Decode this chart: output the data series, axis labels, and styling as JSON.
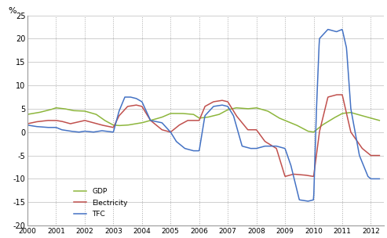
{
  "gdp_x": [
    2000.0,
    2000.4,
    2000.8,
    2001.0,
    2001.3,
    2001.6,
    2002.0,
    2002.4,
    2002.7,
    2003.0,
    2003.2,
    2003.5,
    2003.7,
    2004.0,
    2004.3,
    2004.7,
    2005.0,
    2005.4,
    2005.8,
    2006.0,
    2006.3,
    2006.7,
    2007.0,
    2007.3,
    2007.7,
    2008.0,
    2008.4,
    2008.8,
    2009.0,
    2009.4,
    2009.8,
    2010.0,
    2010.3,
    2010.7,
    2011.0,
    2011.3,
    2011.7,
    2012.0,
    2012.3
  ],
  "gdp_y": [
    3.8,
    4.2,
    4.8,
    5.2,
    5.0,
    4.6,
    4.5,
    3.8,
    2.5,
    1.5,
    1.4,
    1.5,
    1.7,
    2.0,
    2.5,
    3.2,
    4.0,
    4.0,
    3.8,
    3.0,
    3.2,
    3.8,
    4.8,
    5.2,
    5.0,
    5.2,
    4.5,
    3.0,
    2.5,
    1.5,
    0.2,
    0.0,
    1.5,
    3.0,
    4.0,
    4.2,
    3.5,
    3.0,
    2.5
  ],
  "elec_x": [
    2000.0,
    2000.3,
    2000.7,
    2001.0,
    2001.2,
    2001.5,
    2001.8,
    2002.0,
    2002.3,
    2002.6,
    2003.0,
    2003.2,
    2003.5,
    2003.8,
    2004.0,
    2004.3,
    2004.7,
    2005.0,
    2005.3,
    2005.6,
    2006.0,
    2006.2,
    2006.5,
    2006.8,
    2007.0,
    2007.3,
    2007.7,
    2008.0,
    2008.3,
    2008.7,
    2009.0,
    2009.3,
    2009.7,
    2010.0,
    2010.2,
    2010.5,
    2010.8,
    2011.0,
    2011.3,
    2011.7,
    2012.0,
    2012.3
  ],
  "elec_y": [
    1.8,
    2.2,
    2.5,
    2.5,
    2.3,
    1.8,
    2.2,
    2.5,
    2.0,
    1.5,
    1.0,
    3.5,
    5.5,
    5.8,
    5.5,
    2.5,
    0.5,
    0.0,
    1.5,
    2.5,
    2.5,
    5.5,
    6.5,
    6.8,
    6.5,
    3.5,
    0.5,
    0.5,
    -2.0,
    -3.5,
    -9.5,
    -9.0,
    -9.2,
    -9.5,
    0.0,
    7.5,
    8.0,
    8.0,
    0.0,
    -3.5,
    -5.0,
    -5.0
  ],
  "tfc_x": [
    2000.0,
    2000.3,
    2000.7,
    2001.0,
    2001.2,
    2001.5,
    2001.8,
    2002.0,
    2002.3,
    2002.6,
    2003.0,
    2003.2,
    2003.4,
    2003.6,
    2003.8,
    2004.0,
    2004.3,
    2004.7,
    2005.0,
    2005.2,
    2005.5,
    2005.8,
    2006.0,
    2006.2,
    2006.5,
    2006.8,
    2007.0,
    2007.2,
    2007.5,
    2007.8,
    2008.0,
    2008.3,
    2008.7,
    2009.0,
    2009.2,
    2009.5,
    2009.8,
    2010.0,
    2010.1,
    2010.2,
    2010.5,
    2010.8,
    2011.0,
    2011.15,
    2011.3,
    2011.6,
    2011.9,
    2012.0,
    2012.3
  ],
  "tfc_y": [
    1.5,
    1.2,
    1.0,
    1.0,
    0.5,
    0.2,
    0.0,
    0.2,
    0.0,
    0.3,
    0.0,
    4.5,
    7.5,
    7.5,
    7.2,
    6.5,
    2.5,
    2.0,
    0.0,
    -2.0,
    -3.5,
    -4.0,
    -4.0,
    3.5,
    5.5,
    5.8,
    5.5,
    3.5,
    -3.0,
    -3.5,
    -3.5,
    -3.0,
    -3.0,
    -3.5,
    -7.0,
    -14.5,
    -14.8,
    -14.5,
    5.0,
    20.0,
    22.0,
    21.5,
    22.0,
    18.0,
    5.0,
    -5.0,
    -9.5,
    -10.0,
    -10.0
  ],
  "gdp_color": "#8db63c",
  "elec_color": "#c0504d",
  "tfc_color": "#4472c4",
  "xlim": [
    2000,
    2012.45
  ],
  "ylim": [
    -20,
    25
  ],
  "xticks": [
    2000,
    2001,
    2002,
    2003,
    2004,
    2005,
    2006,
    2007,
    2008,
    2009,
    2010,
    2011,
    2012
  ],
  "yticks": [
    -20,
    -15,
    -10,
    -5,
    0,
    5,
    10,
    15,
    20,
    25
  ],
  "ylabel": "%"
}
